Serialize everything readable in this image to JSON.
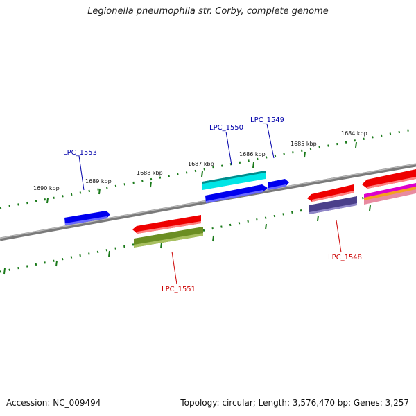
{
  "title": "Legionella pneumophila str. Corby, complete genome",
  "footer": {
    "accession": "Accession: NC_009494",
    "summary": "Topology: circular; Length: 3,576,470 bp; Genes: 3,257"
  },
  "ticks": [
    "1690 kbp",
    "1689 kbp",
    "1688 kbp",
    "1687 kbp",
    "1686 kbp",
    "1685 kbp",
    "1684 kbp"
  ],
  "genes": {
    "forward": [
      "LPC_1553",
      "LPC_1550",
      "LPC_1549"
    ],
    "reverse": [
      "LPC_1551",
      "LPC_1548"
    ]
  },
  "colors": {
    "forward_label": "#0000aa",
    "reverse_label": "#cc0000",
    "tick": "#1a7a1a",
    "backbone": "#808080",
    "blue": "#0000ee",
    "cyan": "#00e5e5",
    "red": "#ee0000",
    "olive": "#6b8e23",
    "slate": "#4a3f8a",
    "magenta": "#dd00cc",
    "orange": "#f5a020",
    "pink": "#e88aa0"
  }
}
